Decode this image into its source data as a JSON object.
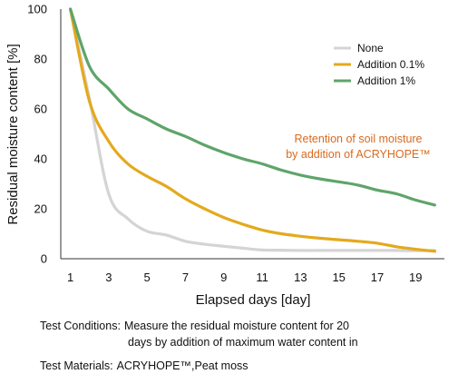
{
  "chart_data": {
    "type": "line",
    "xlabel": "Elapsed days [day]",
    "ylabel": "Residual moisture content [%]",
    "xlim": [
      0.5,
      20.5
    ],
    "ylim": [
      0,
      100
    ],
    "xticks": [
      1,
      3,
      5,
      7,
      9,
      11,
      13,
      15,
      17,
      19
    ],
    "yticks": [
      0,
      20,
      40,
      60,
      80,
      100
    ],
    "grid": false,
    "legend_position": "top-right",
    "x": [
      1,
      2,
      3,
      4,
      5,
      6,
      7,
      8,
      9,
      10,
      11,
      12,
      13,
      14,
      15,
      16,
      17,
      18,
      19,
      20
    ],
    "series": [
      {
        "name": "None",
        "color": "#d4d4d4",
        "values": [
          100,
          64,
          26,
          16,
          11,
          9.5,
          7,
          5.8,
          5,
          4.2,
          3.5,
          3.4,
          3.3,
          3.3,
          3.3,
          3.3,
          3.3,
          3.3,
          3.2,
          3.3
        ]
      },
      {
        "name": "Addition 0.1%",
        "color": "#e4a91c",
        "values": [
          100,
          63,
          47,
          38,
          33,
          29,
          24,
          20,
          16.5,
          13.8,
          11.5,
          10,
          9,
          8.2,
          7.6,
          7,
          6.2,
          4.8,
          3.8,
          3
        ]
      },
      {
        "name": "Addition 1%",
        "color": "#5fa46a",
        "values": [
          100,
          77,
          68,
          60,
          56,
          52,
          49,
          45.5,
          42.5,
          40,
          38,
          35.5,
          33.5,
          32,
          30.8,
          29.5,
          27.5,
          26,
          23.5,
          21.5
        ]
      }
    ],
    "annotation": {
      "lines": [
        "Retention of soil moisture",
        "by addition of ACRYHOPE™"
      ],
      "color": "#d86a1e"
    }
  },
  "notes": {
    "conditions_label": "Test Conditions:",
    "conditions_line1": "Measure the residual moisture content for 20",
    "conditions_line2": "days by addition of maximum water content in",
    "materials_label": "Test Materials:",
    "materials_value": "ACRYHOPE™,Peat moss"
  }
}
